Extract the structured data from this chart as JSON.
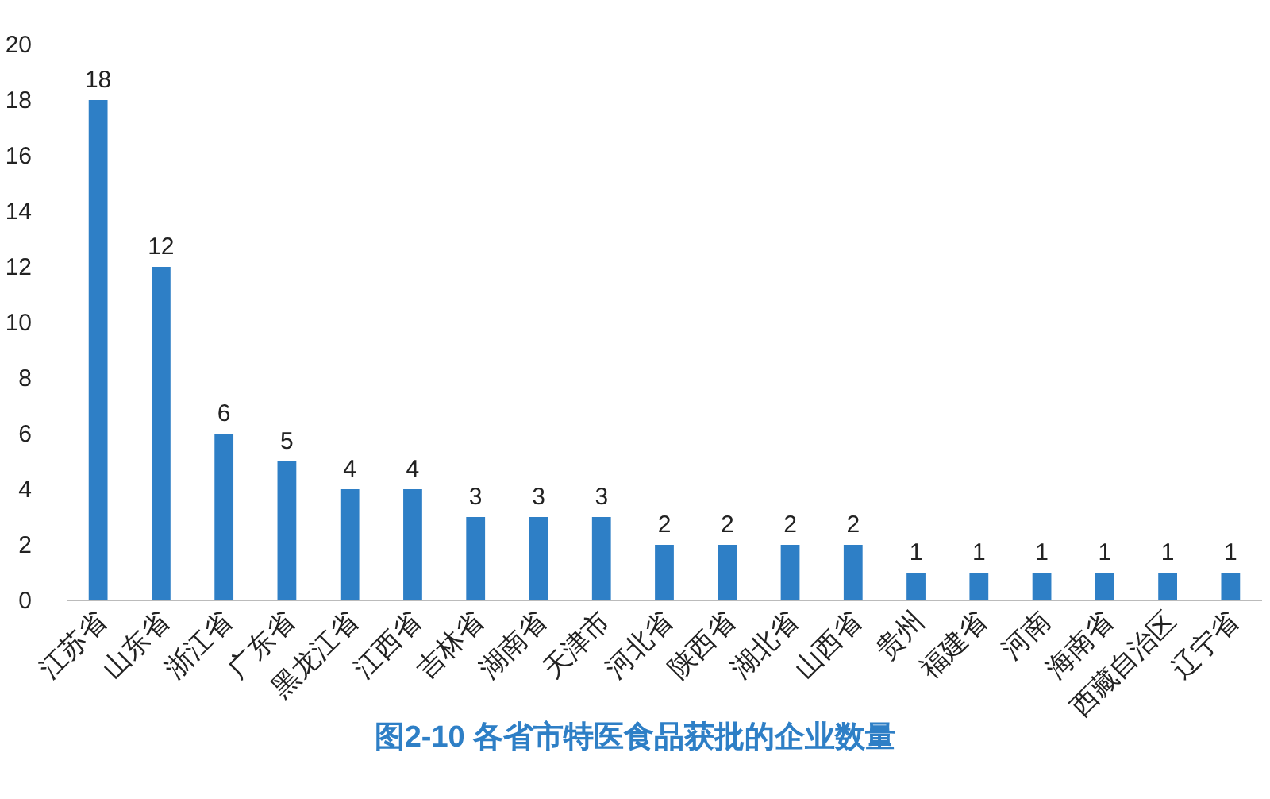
{
  "chart_data": {
    "type": "bar",
    "title": "图2-10 各省市特医食品获批的企业数量",
    "categories": [
      "江苏省",
      "山东省",
      "浙江省",
      "广东省",
      "黑龙江省",
      "江西省",
      "吉林省",
      "湖南省",
      "天津市",
      "河北省",
      "陕西省",
      "湖北省",
      "山西省",
      "贵州",
      "福建省",
      "河南",
      "海南省",
      "西藏自治区",
      "辽宁省"
    ],
    "values": [
      18,
      12,
      6,
      5,
      4,
      4,
      3,
      3,
      3,
      2,
      2,
      2,
      2,
      1,
      1,
      1,
      1,
      1,
      1
    ],
    "color": "#2e7fc6",
    "ylim": [
      0,
      20
    ],
    "yticks": [
      0,
      2,
      4,
      6,
      8,
      10,
      12,
      14,
      16,
      18,
      20
    ],
    "data_labels": true
  }
}
